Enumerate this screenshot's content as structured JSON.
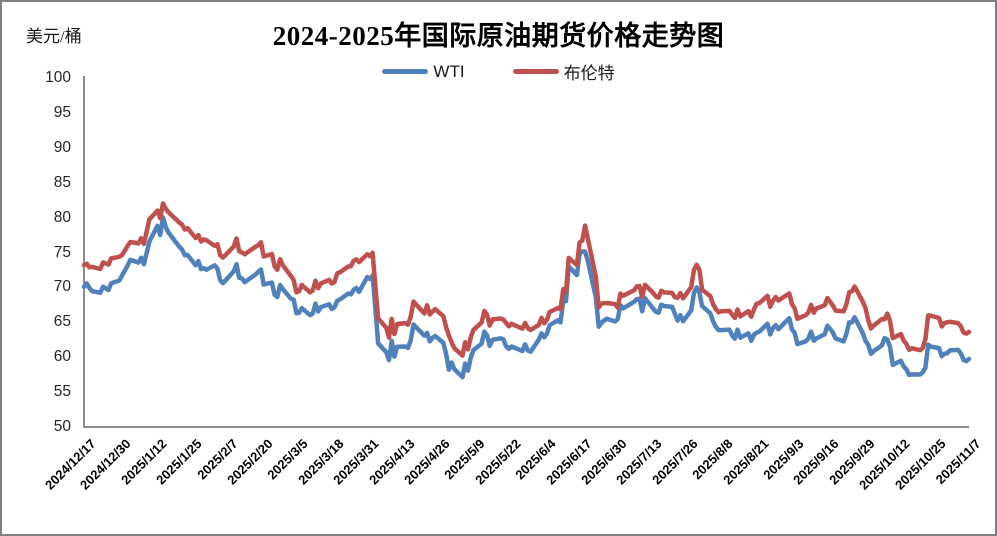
{
  "chart_data": {
    "type": "line",
    "title": "2024-2025年国际原油期货价格走势图",
    "ylabel": "美元/桶",
    "legend_position": "top-center",
    "grid": false,
    "y_axis": {
      "min": 50,
      "max": 100,
      "step": 5
    },
    "x_start": "2024/12/17",
    "x_end": "2025/11/7",
    "x_ticks": [
      "2024/12/17",
      "2024/12/30",
      "2025/1/12",
      "2025/1/25",
      "2025/2/7",
      "2025/2/20",
      "2025/3/5",
      "2025/3/18",
      "2025/3/31",
      "2025/4/13",
      "2025/4/26",
      "2025/5/9",
      "2025/5/22",
      "2025/6/4",
      "2025/6/17",
      "2025/6/30",
      "2025/7/13",
      "2025/7/26",
      "2025/8/8",
      "2025/8/21",
      "2025/9/3",
      "2025/9/16",
      "2025/9/29",
      "2025/10/12",
      "2025/10/25",
      "2025/11/7"
    ],
    "axis_color": "#8c8c8c",
    "dates": [
      "2024/12/17",
      "2024/12/18",
      "2024/12/19",
      "2024/12/20",
      "2024/12/23",
      "2024/12/24",
      "2024/12/26",
      "2024/12/27",
      "2024/12/30",
      "2024/12/31",
      "2025/1/2",
      "2025/1/3",
      "2025/1/6",
      "2025/1/7",
      "2025/1/8",
      "2025/1/10",
      "2025/1/13",
      "2025/1/14",
      "2025/1/15",
      "2025/1/16",
      "2025/1/17",
      "2025/1/21",
      "2025/1/22",
      "2025/1/23",
      "2025/1/24",
      "2025/1/27",
      "2025/1/28",
      "2025/1/29",
      "2025/1/30",
      "2025/1/31",
      "2025/2/3",
      "2025/2/4",
      "2025/2/5",
      "2025/2/6",
      "2025/2/7",
      "2025/2/10",
      "2025/2/11",
      "2025/2/12",
      "2025/2/13",
      "2025/2/14",
      "2025/2/18",
      "2025/2/19",
      "2025/2/20",
      "2025/2/21",
      "2025/2/24",
      "2025/2/25",
      "2025/2/26",
      "2025/2/27",
      "2025/2/28",
      "2025/3/3",
      "2025/3/4",
      "2025/3/5",
      "2025/3/6",
      "2025/3/7",
      "2025/3/10",
      "2025/3/11",
      "2025/3/12",
      "2025/3/13",
      "2025/3/14",
      "2025/3/17",
      "2025/3/18",
      "2025/3/19",
      "2025/3/20",
      "2025/3/21",
      "2025/3/24",
      "2025/3/25",
      "2025/3/26",
      "2025/3/27",
      "2025/3/28",
      "2025/3/31",
      "2025/4/1",
      "2025/4/2",
      "2025/4/3",
      "2025/4/4",
      "2025/4/7",
      "2025/4/8",
      "2025/4/9",
      "2025/4/10",
      "2025/4/11",
      "2025/4/14",
      "2025/4/15",
      "2025/4/16",
      "2025/4/17",
      "2025/4/21",
      "2025/4/22",
      "2025/4/23",
      "2025/4/24",
      "2025/4/25",
      "2025/4/28",
      "2025/4/29",
      "2025/4/30",
      "2025/5/1",
      "2025/5/2",
      "2025/5/5",
      "2025/5/6",
      "2025/5/7",
      "2025/5/8",
      "2025/5/9",
      "2025/5/12",
      "2025/5/13",
      "2025/5/14",
      "2025/5/15",
      "2025/5/16",
      "2025/5/19",
      "2025/5/20",
      "2025/5/21",
      "2025/5/22",
      "2025/5/23",
      "2025/5/27",
      "2025/5/28",
      "2025/5/29",
      "2025/5/30",
      "2025/6/2",
      "2025/6/3",
      "2025/6/4",
      "2025/6/5",
      "2025/6/6",
      "2025/6/9",
      "2025/6/10",
      "2025/6/11",
      "2025/6/12",
      "2025/6/13",
      "2025/6/16",
      "2025/6/17",
      "2025/6/18",
      "2025/6/19",
      "2025/6/20",
      "2025/6/23",
      "2025/6/24",
      "2025/6/25",
      "2025/6/26",
      "2025/6/27",
      "2025/6/30",
      "2025/7/1",
      "2025/7/2",
      "2025/7/3",
      "2025/7/7",
      "2025/7/8",
      "2025/7/9",
      "2025/7/10",
      "2025/7/11",
      "2025/7/14",
      "2025/7/15",
      "2025/7/16",
      "2025/7/17",
      "2025/7/18",
      "2025/7/21",
      "2025/7/22",
      "2025/7/23",
      "2025/7/24",
      "2025/7/25",
      "2025/7/28",
      "2025/7/29",
      "2025/7/30",
      "2025/7/31",
      "2025/8/1",
      "2025/8/4",
      "2025/8/5",
      "2025/8/6",
      "2025/8/7",
      "2025/8/8",
      "2025/8/11",
      "2025/8/12",
      "2025/8/13",
      "2025/8/14",
      "2025/8/15",
      "2025/8/18",
      "2025/8/19",
      "2025/8/20",
      "2025/8/21",
      "2025/8/22",
      "2025/8/25",
      "2025/8/26",
      "2025/8/27",
      "2025/8/28",
      "2025/8/29",
      "2025/9/2",
      "2025/9/3",
      "2025/9/4",
      "2025/9/5",
      "2025/9/8",
      "2025/9/9",
      "2025/9/10",
      "2025/9/11",
      "2025/9/12",
      "2025/9/15",
      "2025/9/16",
      "2025/9/17",
      "2025/9/18",
      "2025/9/19",
      "2025/9/22",
      "2025/9/23",
      "2025/9/24",
      "2025/9/25",
      "2025/9/26",
      "2025/9/29",
      "2025/9/30",
      "2025/10/1",
      "2025/10/2",
      "2025/10/3",
      "2025/10/6",
      "2025/10/7",
      "2025/10/8",
      "2025/10/9",
      "2025/10/10",
      "2025/10/13",
      "2025/10/14",
      "2025/10/15",
      "2025/10/16",
      "2025/10/17",
      "2025/10/20",
      "2025/10/21",
      "2025/10/22",
      "2025/10/23",
      "2025/10/24",
      "2025/10/27",
      "2025/10/28",
      "2025/10/29",
      "2025/10/30",
      "2025/10/31",
      "2025/11/3",
      "2025/11/4",
      "2025/11/5",
      "2025/11/6",
      "2025/11/7"
    ],
    "series": [
      {
        "name": "WTI",
        "color": "#4f81bd",
        "values": [
          70.08,
          70.58,
          69.91,
          69.46,
          69.24,
          70.1,
          69.62,
          70.6,
          70.99,
          71.72,
          73.13,
          73.96,
          73.56,
          74.25,
          73.32,
          76.57,
          78.82,
          77.5,
          80.04,
          78.68,
          77.88,
          75.83,
          75.44,
          74.62,
          74.66,
          73.17,
          73.77,
          72.62,
          72.73,
          72.53,
          73.16,
          72.7,
          71.03,
          70.61,
          71.0,
          72.32,
          73.32,
          71.37,
          71.29,
          70.74,
          71.85,
          72.25,
          72.57,
          70.4,
          70.7,
          68.93,
          68.62,
          70.35,
          69.76,
          68.37,
          68.26,
          66.31,
          66.36,
          67.04,
          66.03,
          66.25,
          67.68,
          66.55,
          67.18,
          67.58,
          66.9,
          67.16,
          68.07,
          68.28,
          69.11,
          69.0,
          69.65,
          69.92,
          69.36,
          71.48,
          71.2,
          71.71,
          66.95,
          61.99,
          60.7,
          59.58,
          62.35,
          60.07,
          61.5,
          61.53,
          61.33,
          62.47,
          64.68,
          63.08,
          63.47,
          62.27,
          62.79,
          63.02,
          62.05,
          60.42,
          58.21,
          59.24,
          58.29,
          57.13,
          59.09,
          58.07,
          59.91,
          61.02,
          61.95,
          63.67,
          63.15,
          61.62,
          62.49,
          62.69,
          62.56,
          61.57,
          61.2,
          61.53,
          60.89,
          61.84,
          60.94,
          60.79,
          62.52,
          63.41,
          62.85,
          63.37,
          64.58,
          65.29,
          64.98,
          68.15,
          68.04,
          72.98,
          71.77,
          74.84,
          75.14,
          75.14,
          73.84,
          68.51,
          64.37,
          64.92,
          65.24,
          65.52,
          65.11,
          65.45,
          67.45,
          67.0,
          67.93,
          68.33,
          68.38,
          66.57,
          68.45,
          66.98,
          66.52,
          66.38,
          67.54,
          67.34,
          67.2,
          66.21,
          65.25,
          66.03,
          65.16,
          66.71,
          69.21,
          70.0,
          69.26,
          67.33,
          66.29,
          65.16,
          64.35,
          63.88,
          63.88,
          63.96,
          63.17,
          62.65,
          63.96,
          62.8,
          63.42,
          62.35,
          63.21,
          63.52,
          63.66,
          64.8,
          63.25,
          64.15,
          64.6,
          64.01,
          65.59,
          63.97,
          63.48,
          61.87,
          62.26,
          62.63,
          63.67,
          62.37,
          62.69,
          63.3,
          64.52,
          64.05,
          63.57,
          62.68,
          62.27,
          63.41,
          64.99,
          64.98,
          65.72,
          63.45,
          62.37,
          61.78,
          60.48,
          60.88,
          61.69,
          62.73,
          62.55,
          61.51,
          58.9,
          59.49,
          58.7,
          58.27,
          57.46,
          57.54,
          57.52,
          57.82,
          58.5,
          61.79,
          61.5,
          61.31,
          60.15,
          60.48,
          60.57,
          60.98,
          61.05,
          60.56,
          59.6,
          59.43,
          59.75
        ]
      },
      {
        "name": "布伦特",
        "color": "#c0504d",
        "values": [
          73.19,
          73.39,
          72.88,
          72.94,
          72.63,
          73.58,
          73.26,
          74.17,
          74.39,
          74.64,
          75.93,
          76.51,
          76.3,
          77.05,
          76.23,
          79.76,
          81.01,
          79.92,
          82.03,
          81.29,
          80.79,
          79.29,
          79.0,
          78.29,
          78.5,
          77.08,
          77.49,
          76.58,
          76.87,
          76.76,
          75.96,
          76.2,
          74.61,
          74.29,
          74.66,
          75.87,
          77.0,
          75.18,
          75.02,
          74.74,
          75.84,
          76.04,
          76.48,
          74.43,
          74.78,
          73.02,
          72.53,
          74.04,
          73.18,
          71.62,
          71.04,
          69.3,
          69.46,
          70.36,
          69.28,
          69.56,
          70.95,
          69.88,
          70.58,
          71.07,
          70.56,
          70.78,
          72.0,
          72.16,
          73.0,
          73.02,
          73.79,
          74.03,
          73.63,
          74.74,
          74.49,
          74.95,
          70.14,
          65.58,
          64.21,
          62.82,
          65.48,
          63.33,
          64.76,
          64.88,
          64.67,
          65.85,
          67.96,
          66.26,
          67.44,
          66.12,
          66.55,
          66.87,
          65.86,
          64.25,
          63.12,
          62.13,
          61.29,
          60.23,
          62.15,
          61.12,
          62.84,
          63.91,
          64.96,
          66.63,
          66.09,
          64.53,
          65.41,
          65.54,
          65.38,
          64.91,
          64.44,
          64.78,
          64.09,
          64.92,
          64.15,
          63.9,
          64.63,
          65.63,
          64.86,
          65.34,
          66.47,
          67.04,
          66.87,
          69.77,
          69.36,
          74.23,
          73.23,
          76.45,
          76.7,
          78.85,
          77.01,
          71.48,
          67.14,
          67.68,
          67.73,
          67.77,
          67.61,
          67.11,
          69.11,
          68.8,
          69.58,
          70.15,
          70.19,
          68.64,
          70.36,
          69.21,
          68.71,
          68.52,
          69.52,
          69.28,
          69.21,
          68.59,
          68.51,
          69.18,
          68.44,
          70.04,
          72.51,
          73.24,
          72.53,
          69.67,
          68.76,
          67.64,
          66.89,
          66.43,
          66.59,
          66.63,
          66.12,
          65.63,
          66.84,
          65.85,
          66.6,
          65.79,
          66.84,
          67.67,
          67.73,
          68.8,
          67.22,
          68.05,
          68.62,
          68.12,
          69.14,
          67.6,
          66.99,
          65.5,
          66.02,
          66.39,
          67.49,
          66.37,
          66.99,
          67.44,
          68.47,
          67.95,
          67.44,
          66.68,
          66.57,
          67.63,
          69.31,
          69.42,
          70.13,
          67.97,
          67.02,
          65.35,
          64.11,
          64.53,
          65.47,
          65.45,
          66.25,
          65.22,
          62.73,
          63.32,
          62.39,
          61.91,
          61.06,
          61.29,
          61.01,
          61.32,
          62.59,
          65.99,
          65.94,
          65.62,
          64.4,
          64.92,
          65.0,
          65.07,
          64.89,
          64.44,
          63.52,
          63.38,
          63.63
        ]
      }
    ]
  }
}
